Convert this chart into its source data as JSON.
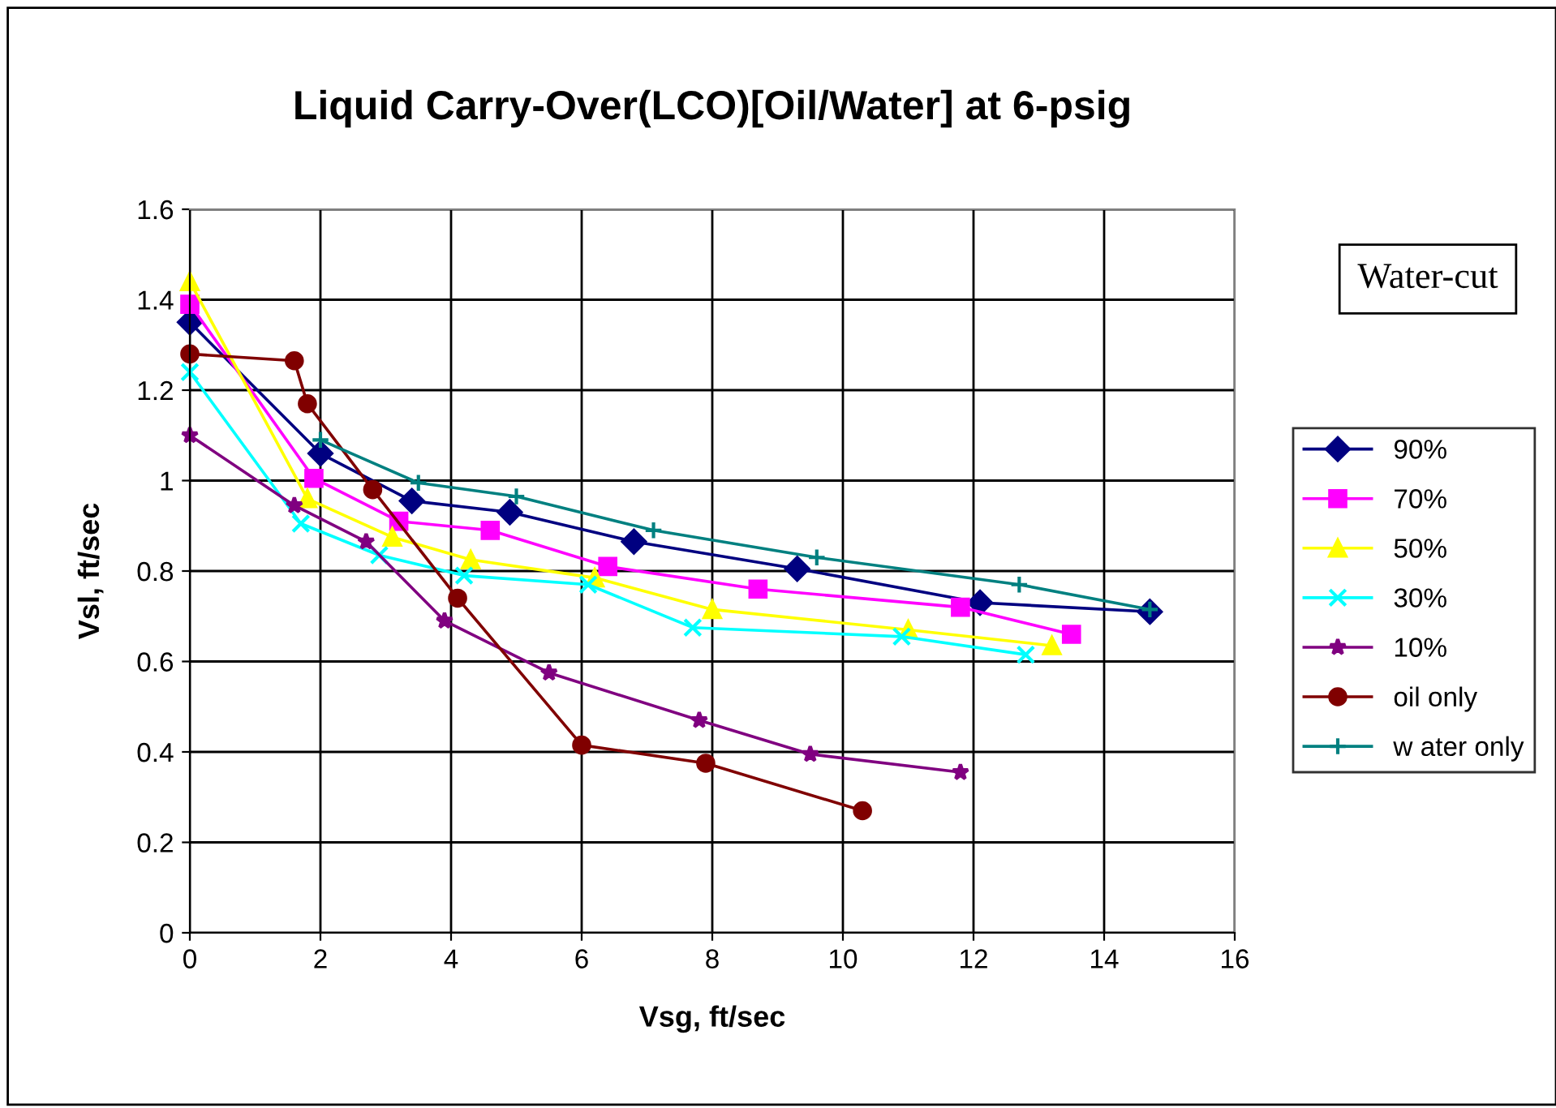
{
  "chart_data": {
    "type": "line",
    "title": "Liquid Carry-Over(LCO)[Oil/Water] at 6-psig",
    "xlabel": "Vsg, ft/sec",
    "ylabel": "Vsl, ft/sec",
    "legend_title": "Water-cut",
    "xlim": [
      0,
      16
    ],
    "xticks": [
      0,
      2,
      4,
      6,
      8,
      10,
      12,
      14,
      16
    ],
    "ylim": [
      0,
      1.6
    ],
    "yticks": [
      0,
      0.2,
      0.4,
      0.6,
      0.8,
      1,
      1.2,
      1.4,
      1.6
    ],
    "grid": true,
    "legend": "right",
    "series": [
      {
        "name": "90%",
        "color": "#000080",
        "marker": "diamond",
        "x": [
          0,
          2.0,
          3.4,
          4.9,
          6.8,
          9.3,
          12.1,
          14.7
        ],
        "values": [
          1.35,
          1.06,
          0.955,
          0.93,
          0.865,
          0.805,
          0.73,
          0.71
        ]
      },
      {
        "name": "70%",
        "color": "#ff00ff",
        "marker": "square",
        "x": [
          0,
          1.9,
          3.2,
          4.6,
          6.4,
          8.7,
          11.8,
          13.5
        ],
        "values": [
          1.39,
          1.005,
          0.91,
          0.89,
          0.81,
          0.76,
          0.72,
          0.66
        ]
      },
      {
        "name": "50%",
        "color": "#ffff00",
        "marker": "triangle",
        "x": [
          0,
          1.8,
          3.1,
          4.3,
          6.2,
          8.0,
          11.0,
          13.2
        ],
        "values": [
          1.44,
          0.96,
          0.875,
          0.825,
          0.785,
          0.715,
          0.67,
          0.635
        ]
      },
      {
        "name": "30%",
        "color": "#00ffff",
        "marker": "cross",
        "x": [
          0,
          1.7,
          2.9,
          4.2,
          6.1,
          7.7,
          10.9,
          12.8
        ],
        "values": [
          1.24,
          0.905,
          0.835,
          0.79,
          0.77,
          0.675,
          0.655,
          0.615
        ]
      },
      {
        "name": "10%",
        "color": "#800080",
        "marker": "star",
        "x": [
          0,
          1.6,
          2.7,
          3.9,
          5.5,
          7.8,
          9.5,
          11.8
        ],
        "values": [
          1.1,
          0.945,
          0.865,
          0.69,
          0.575,
          0.47,
          0.395,
          0.355
        ]
      },
      {
        "name": "oil only",
        "color": "#800000",
        "marker": "circle",
        "x": [
          0,
          1.6,
          1.8,
          2.8,
          4.1,
          6.0,
          7.9,
          10.3
        ],
        "values": [
          1.28,
          1.265,
          1.17,
          0.98,
          0.74,
          0.415,
          0.375,
          0.27
        ]
      },
      {
        "name": "w ater only",
        "color": "#008080",
        "marker": "plus",
        "x": [
          2.0,
          3.5,
          5.0,
          7.1,
          9.6,
          12.7,
          14.7
        ],
        "values": [
          1.09,
          0.995,
          0.965,
          0.89,
          0.83,
          0.77,
          0.715
        ]
      }
    ]
  }
}
